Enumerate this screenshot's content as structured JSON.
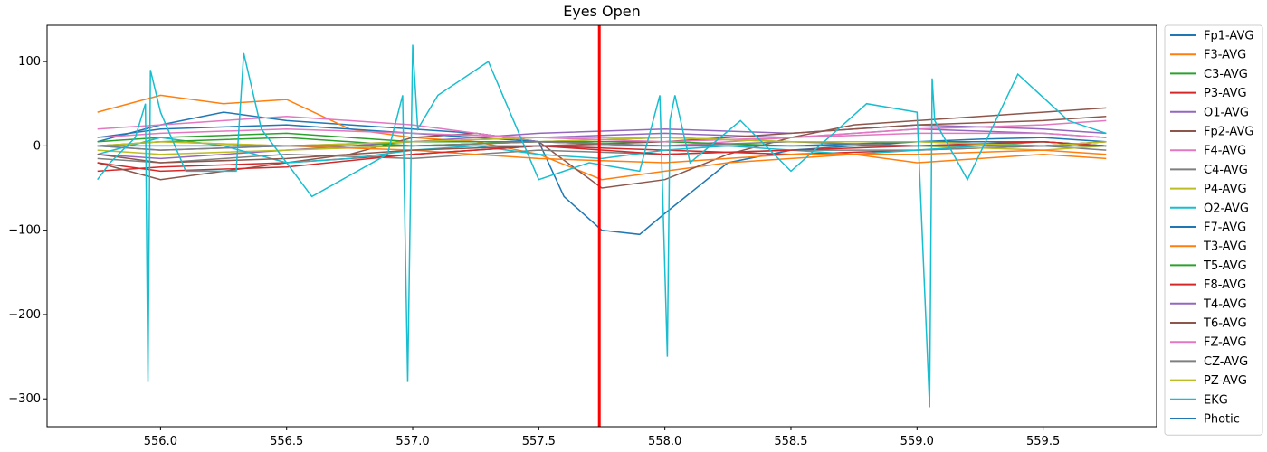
{
  "chart_data": {
    "type": "line",
    "title": "Eyes Open",
    "xlabel": "",
    "ylabel": "",
    "xlim": [
      555.55,
      559.95
    ],
    "ylim": [
      -333,
      143
    ],
    "xticks": [
      556.0,
      556.5,
      557.0,
      557.5,
      558.0,
      558.5,
      559.0,
      559.5
    ],
    "xtick_labels": [
      "556.0",
      "556.5",
      "557.0",
      "557.5",
      "558.0",
      "558.5",
      "559.0",
      "559.5"
    ],
    "yticks": [
      100,
      0,
      -100,
      -200,
      -300
    ],
    "ytick_labels": [
      "100",
      "0",
      "−100",
      "−200",
      "−300"
    ],
    "grid": false,
    "legend_position": "outside-right",
    "marker_line": {
      "x": 557.74,
      "color": "#ff0000"
    },
    "series": [
      {
        "name": "Fp1-AVG",
        "color": "#1f77b4",
        "x": [
          555.75,
          556.0,
          556.25,
          556.5,
          556.75,
          557.0,
          557.25,
          557.5,
          557.6,
          557.75,
          557.9,
          558.0,
          558.25,
          558.5,
          558.75,
          559.0,
          559.25,
          559.5,
          559.75
        ],
        "y": [
          5,
          25,
          40,
          30,
          25,
          20,
          15,
          5,
          -60,
          -100,
          -105,
          -80,
          -20,
          -5,
          0,
          5,
          8,
          10,
          5
        ]
      },
      {
        "name": "F3-AVG",
        "color": "#ff7f0e",
        "x": [
          555.75,
          556.0,
          556.25,
          556.5,
          556.75,
          557.0,
          557.25,
          557.5,
          557.75,
          558.0,
          558.25,
          558.5,
          558.75,
          559.0,
          559.25,
          559.5,
          559.75
        ],
        "y": [
          40,
          60,
          50,
          55,
          20,
          10,
          5,
          -10,
          -40,
          -30,
          -20,
          -15,
          -10,
          -20,
          -15,
          -10,
          -15
        ]
      },
      {
        "name": "C3-AVG",
        "color": "#2ca02c",
        "x": [
          555.75,
          556.0,
          556.5,
          557.0,
          557.5,
          558.0,
          558.5,
          559.0,
          559.5,
          559.75
        ],
        "y": [
          5,
          10,
          15,
          5,
          5,
          10,
          5,
          5,
          0,
          5
        ]
      },
      {
        "name": "P3-AVG",
        "color": "#d62728",
        "x": [
          555.75,
          556.0,
          556.5,
          557.0,
          557.5,
          558.0,
          558.5,
          559.0,
          559.5,
          559.75
        ],
        "y": [
          -30,
          -25,
          -20,
          -10,
          0,
          -5,
          -10,
          -5,
          0,
          5
        ]
      },
      {
        "name": "O1-AVG",
        "color": "#9467bd",
        "x": [
          555.75,
          556.0,
          556.5,
          557.0,
          557.5,
          558.0,
          558.5,
          559.0,
          559.5,
          559.75
        ],
        "y": [
          -10,
          -15,
          -5,
          5,
          10,
          15,
          10,
          20,
          15,
          10
        ]
      },
      {
        "name": "Fp2-AVG",
        "color": "#8c564b",
        "x": [
          555.75,
          556.0,
          556.25,
          556.5,
          556.75,
          557.0,
          557.25,
          557.5,
          557.75,
          558.0,
          558.25,
          558.5,
          558.75,
          559.0,
          559.25,
          559.5,
          559.75
        ],
        "y": [
          -20,
          -40,
          -30,
          -20,
          -10,
          10,
          15,
          5,
          -50,
          -40,
          -10,
          10,
          25,
          30,
          35,
          40,
          45
        ]
      },
      {
        "name": "F4-AVG",
        "color": "#e377c2",
        "x": [
          555.75,
          556.0,
          556.25,
          556.5,
          556.75,
          557.0,
          557.5,
          558.0,
          558.5,
          559.0,
          559.5,
          559.75
        ],
        "y": [
          20,
          25,
          30,
          35,
          30,
          25,
          5,
          0,
          10,
          20,
          25,
          30
        ]
      },
      {
        "name": "C4-AVG",
        "color": "#7f7f7f",
        "x": [
          555.75,
          556.0,
          556.5,
          557.0,
          557.5,
          558.0,
          558.5,
          559.0,
          559.5,
          559.75
        ],
        "y": [
          -15,
          -20,
          -10,
          -15,
          -5,
          -10,
          -5,
          -5,
          0,
          -5
        ]
      },
      {
        "name": "P4-AVG",
        "color": "#bcbd22",
        "x": [
          555.75,
          556.0,
          556.5,
          557.0,
          557.5,
          558.0,
          558.5,
          559.0,
          559.5,
          559.75
        ],
        "y": [
          -5,
          -10,
          -5,
          0,
          5,
          10,
          5,
          0,
          -5,
          0
        ]
      },
      {
        "name": "O2-AVG",
        "color": "#17becf",
        "x": [
          555.75,
          556.0,
          556.25,
          556.5,
          556.75,
          557.0,
          557.25,
          557.5,
          557.75,
          558.0,
          558.25,
          558.5,
          558.75,
          559.0,
          559.25,
          559.5,
          559.75
        ],
        "y": [
          -10,
          10,
          0,
          -20,
          -15,
          -5,
          0,
          -10,
          -15,
          -5,
          0,
          -5,
          -10,
          -5,
          0,
          5,
          0
        ]
      },
      {
        "name": "F7-AVG",
        "color": "#1f77b4",
        "x": [
          555.75,
          556.0,
          556.5,
          557.0,
          557.5,
          558.0,
          558.5,
          559.0,
          559.5,
          559.75
        ],
        "y": [
          10,
          20,
          25,
          15,
          5,
          0,
          0,
          5,
          5,
          0
        ]
      },
      {
        "name": "T3-AVG",
        "color": "#ff7f0e",
        "x": [
          555.75,
          556.0,
          556.5,
          557.0,
          557.5,
          558.0,
          558.5,
          559.0,
          559.5,
          559.75
        ],
        "y": [
          0,
          5,
          0,
          -5,
          -15,
          -20,
          -10,
          -10,
          -5,
          -10
        ]
      },
      {
        "name": "T5-AVG",
        "color": "#2ca02c",
        "x": [
          555.75,
          556.0,
          556.5,
          557.0,
          557.5,
          558.0,
          558.5,
          559.0,
          559.5,
          559.75
        ],
        "y": [
          0,
          5,
          10,
          0,
          5,
          5,
          0,
          0,
          5,
          0
        ]
      },
      {
        "name": "F8-AVG",
        "color": "#d62728",
        "x": [
          555.75,
          556.0,
          556.5,
          557.0,
          557.5,
          558.0,
          558.5,
          559.0,
          559.5,
          559.75
        ],
        "y": [
          -20,
          -30,
          -25,
          -10,
          0,
          -10,
          -5,
          0,
          5,
          0
        ]
      },
      {
        "name": "T4-AVG",
        "color": "#9467bd",
        "x": [
          555.75,
          556.0,
          556.5,
          557.0,
          557.5,
          558.0,
          558.5,
          559.0,
          559.5,
          559.75
        ],
        "y": [
          0,
          -5,
          0,
          5,
          15,
          20,
          15,
          25,
          20,
          15
        ]
      },
      {
        "name": "T6-AVG",
        "color": "#8c564b",
        "x": [
          555.75,
          556.0,
          556.5,
          557.0,
          557.5,
          558.0,
          558.5,
          559.0,
          559.5,
          559.75
        ],
        "y": [
          -10,
          -20,
          -15,
          -5,
          0,
          5,
          15,
          25,
          30,
          35
        ]
      },
      {
        "name": "FZ-AVG",
        "color": "#e377c2",
        "x": [
          555.75,
          556.0,
          556.5,
          557.0,
          557.5,
          558.0,
          558.5,
          559.0,
          559.5,
          559.75
        ],
        "y": [
          10,
          15,
          20,
          15,
          10,
          5,
          10,
          15,
          15,
          10
        ]
      },
      {
        "name": "CZ-AVG",
        "color": "#7f7f7f",
        "x": [
          555.75,
          556.0,
          556.5,
          557.0,
          557.5,
          558.0,
          558.5,
          559.0,
          559.5,
          559.75
        ],
        "y": [
          0,
          -5,
          0,
          0,
          5,
          0,
          5,
          0,
          0,
          0
        ]
      },
      {
        "name": "PZ-AVG",
        "color": "#bcbd22",
        "x": [
          555.75,
          556.0,
          556.5,
          557.0,
          557.5,
          558.0,
          558.5,
          559.0,
          559.5,
          559.75
        ],
        "y": [
          0,
          5,
          0,
          5,
          10,
          10,
          5,
          5,
          0,
          5
        ]
      },
      {
        "name": "EKG",
        "color": "#17becf",
        "x": [
          555.75,
          555.8,
          555.9,
          555.94,
          555.95,
          555.96,
          556.0,
          556.1,
          556.3,
          556.33,
          556.4,
          556.6,
          556.9,
          556.96,
          556.98,
          557.0,
          557.02,
          557.1,
          557.3,
          557.5,
          557.7,
          557.9,
          557.98,
          558.01,
          558.02,
          558.04,
          558.1,
          558.3,
          558.5,
          558.8,
          559.0,
          559.05,
          559.06,
          559.07,
          559.2,
          559.4,
          559.6,
          559.75
        ],
        "y": [
          -40,
          -20,
          10,
          50,
          -280,
          90,
          40,
          -30,
          -30,
          110,
          20,
          -60,
          -10,
          60,
          -280,
          120,
          20,
          60,
          100,
          -40,
          -20,
          -30,
          60,
          -250,
          30,
          60,
          -20,
          30,
          -30,
          50,
          40,
          -310,
          80,
          30,
          -40,
          85,
          30,
          15
        ]
      },
      {
        "name": "Photic",
        "color": "#1f77b4",
        "x": [
          555.75,
          559.75
        ],
        "y": [
          0,
          0
        ]
      }
    ]
  }
}
